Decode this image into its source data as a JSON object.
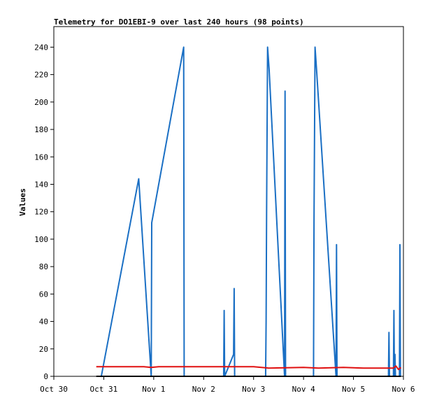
{
  "chart_data": {
    "type": "line",
    "title": "Telemetry for DO1EBI-9 over last 240 hours (98 points)",
    "xlabel": "",
    "ylabel": "Values",
    "ylim": [
      0,
      255
    ],
    "xlim": [
      0,
      7
    ],
    "x_ticks": [
      {
        "value": 0,
        "label": "Oct 30"
      },
      {
        "value": 1,
        "label": "Oct 31"
      },
      {
        "value": 2,
        "label": "Nov 1"
      },
      {
        "value": 3,
        "label": "Nov 2"
      },
      {
        "value": 4,
        "label": "Nov 3"
      },
      {
        "value": 5,
        "label": "Nov 4"
      },
      {
        "value": 6,
        "label": "Nov 5"
      },
      {
        "value": 7,
        "label": "Nov 6"
      }
    ],
    "y_ticks": [
      0,
      20,
      40,
      60,
      80,
      100,
      120,
      140,
      160,
      180,
      200,
      220,
      240
    ],
    "grid": false,
    "legend": "none",
    "series": [
      {
        "color": "#1a6fc4",
        "points": [
          [
            0.95,
            0
          ],
          [
            1.7,
            144
          ],
          [
            1.95,
            0
          ],
          [
            1.96,
            112
          ],
          [
            2.6,
            240
          ],
          [
            2.61,
            0
          ],
          [
            3.4,
            0
          ],
          [
            3.41,
            48
          ],
          [
            3.42,
            0
          ],
          [
            3.6,
            16
          ],
          [
            3.61,
            64
          ],
          [
            3.62,
            0
          ],
          [
            4.24,
            0
          ],
          [
            4.25,
            40
          ],
          [
            4.26,
            120
          ],
          [
            4.28,
            240
          ],
          [
            4.31,
            224
          ],
          [
            4.62,
            0
          ],
          [
            4.63,
            208
          ],
          [
            4.64,
            0
          ],
          [
            5.2,
            0
          ],
          [
            5.21,
            112
          ],
          [
            5.23,
            240
          ],
          [
            5.26,
            224
          ],
          [
            5.65,
            0
          ],
          [
            5.66,
            96
          ],
          [
            5.67,
            0
          ],
          [
            6.7,
            0
          ],
          [
            6.71,
            32
          ],
          [
            6.72,
            0
          ],
          [
            6.8,
            0
          ],
          [
            6.81,
            48
          ],
          [
            6.82,
            0
          ],
          [
            6.83,
            16
          ],
          [
            6.84,
            0
          ],
          [
            6.92,
            0
          ],
          [
            6.93,
            96
          ],
          [
            6.94,
            0
          ]
        ]
      },
      {
        "color": "#e01010",
        "points": [
          [
            0.85,
            7
          ],
          [
            1.8,
            7
          ],
          [
            1.95,
            6.5
          ],
          [
            2.1,
            7
          ],
          [
            4.0,
            7
          ],
          [
            4.3,
            6
          ],
          [
            5.0,
            6.5
          ],
          [
            5.3,
            6
          ],
          [
            5.8,
            6.5
          ],
          [
            6.2,
            6
          ],
          [
            6.8,
            6
          ],
          [
            6.85,
            7.5
          ],
          [
            6.9,
            5
          ],
          [
            6.95,
            6.5
          ]
        ]
      },
      {
        "color": "#000000",
        "points": [
          [
            0.85,
            0
          ],
          [
            6.95,
            0
          ]
        ]
      }
    ]
  }
}
